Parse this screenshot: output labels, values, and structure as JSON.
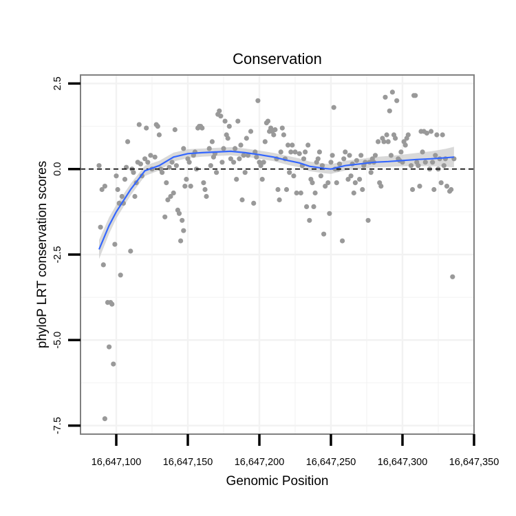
{
  "chart_data": {
    "type": "scatter",
    "title": "Conservation",
    "xlabel": "Genomic Position",
    "ylabel": "phyloP LRT conservation scores",
    "xlim": [
      16647075,
      16647350
    ],
    "ylim": [
      -7.75,
      2.75
    ],
    "x_ticks": [
      16647100,
      16647150,
      16647200,
      16647250,
      16647300,
      16647350
    ],
    "x_tick_labels": [
      "16,647,100",
      "16,647,150",
      "16,647,200",
      "16,647,250",
      "16,647,300",
      "16,647,350"
    ],
    "y_ticks": [
      2.5,
      0.0,
      -2.5,
      -5.0,
      -7.5
    ],
    "y_tick_labels": [
      "2.5",
      "0.0",
      "-2.5",
      "-5.0",
      "-7.5"
    ],
    "reference_line": {
      "y": 0.0,
      "style": "dashed"
    },
    "grid": true,
    "colors": {
      "points": "#999999",
      "smooth_line": "#3366ff",
      "ribbon": "#cccccc",
      "grid": "#f2f2f2",
      "frame": "#808080"
    },
    "series": [
      {
        "name": "points",
        "points": [
          [
            16647088,
            0.1
          ],
          [
            16647089,
            -1.7
          ],
          [
            16647090,
            -0.6
          ],
          [
            16647091,
            -2.8
          ],
          [
            16647092,
            -0.5
          ],
          [
            16647092,
            -7.3
          ],
          [
            16647094,
            -3.9
          ],
          [
            16647095,
            -5.2
          ],
          [
            16647096,
            -3.9
          ],
          [
            16647097,
            -3.95
          ],
          [
            16647098,
            -5.7
          ],
          [
            16647099,
            -2.2
          ],
          [
            16647100,
            -0.2
          ],
          [
            16647101,
            -0.6
          ],
          [
            16647102,
            -1.0
          ],
          [
            16647103,
            -3.1
          ],
          [
            16647104,
            -0.8
          ],
          [
            16647105,
            -1.0
          ],
          [
            16647106,
            -0.3
          ],
          [
            16647107,
            0.05
          ],
          [
            16647108,
            0.8
          ],
          [
            16647110,
            -2.4
          ],
          [
            16647111,
            0.0
          ],
          [
            16647112,
            -0.1
          ],
          [
            16647113,
            -0.8
          ],
          [
            16647114,
            -0.4
          ],
          [
            16647115,
            0.2
          ],
          [
            16647116,
            1.3
          ],
          [
            16647117,
            0.15
          ],
          [
            16647118,
            -0.2
          ],
          [
            16647120,
            0.3
          ],
          [
            16647121,
            1.2
          ],
          [
            16647122,
            0.2
          ],
          [
            16647124,
            0.4
          ],
          [
            16647125,
            0.0
          ],
          [
            16647127,
            0.35
          ],
          [
            16647128,
            1.3
          ],
          [
            16647129,
            1.25
          ],
          [
            16647130,
            1.0
          ],
          [
            16647131,
            0.0
          ],
          [
            16647132,
            -0.1
          ],
          [
            16647134,
            -1.4
          ],
          [
            16647135,
            -0.4
          ],
          [
            16647136,
            -0.9
          ],
          [
            16647137,
            0.05
          ],
          [
            16647138,
            -0.8
          ],
          [
            16647139,
            0.2
          ],
          [
            16647140,
            -0.7
          ],
          [
            16647141,
            1.15
          ],
          [
            16647142,
            0.1
          ],
          [
            16647143,
            -1.2
          ],
          [
            16647144,
            -1.3
          ],
          [
            16647145,
            -2.1
          ],
          [
            16647146,
            -1.5
          ],
          [
            16647147,
            0.6
          ],
          [
            16647147,
            -1.8
          ],
          [
            16647148,
            -0.5
          ],
          [
            16647149,
            -0.3
          ],
          [
            16647150,
            0.3
          ],
          [
            16647151,
            0.2
          ],
          [
            16647152,
            -0.5
          ],
          [
            16647154,
            0.4
          ],
          [
            16647155,
            0.5
          ],
          [
            16647156,
            0.0
          ],
          [
            16647157,
            1.2
          ],
          [
            16647158,
            1.25
          ],
          [
            16647159,
            1.25
          ],
          [
            16647160,
            1.2
          ],
          [
            16647161,
            -0.4
          ],
          [
            16647162,
            -0.6
          ],
          [
            16647163,
            -0.8
          ],
          [
            16647165,
            0.6
          ],
          [
            16647166,
            0.1
          ],
          [
            16647167,
            0.8
          ],
          [
            16647168,
            0.35
          ],
          [
            16647169,
            0.45
          ],
          [
            16647170,
            -0.1
          ],
          [
            16647171,
            1.6
          ],
          [
            16647172,
            1.7
          ],
          [
            16647173,
            1.55
          ],
          [
            16647174,
            0.2
          ],
          [
            16647175,
            0.6
          ],
          [
            16647176,
            1.4
          ],
          [
            16647177,
            1.0
          ],
          [
            16647178,
            0.9
          ],
          [
            16647179,
            1.25
          ],
          [
            16647180,
            0.3
          ],
          [
            16647182,
            0.2
          ],
          [
            16647183,
            0.6
          ],
          [
            16647184,
            -0.3
          ],
          [
            16647185,
            1.4
          ],
          [
            16647186,
            0.3
          ],
          [
            16647187,
            0.7
          ],
          [
            16647188,
            -0.9
          ],
          [
            16647189,
            0.4
          ],
          [
            16647190,
            -0.1
          ],
          [
            16647191,
            0.9
          ],
          [
            16647192,
            0.4
          ],
          [
            16647194,
            1.1
          ],
          [
            16647196,
            -1.0
          ],
          [
            16647197,
            0.5
          ],
          [
            16647198,
            0.35
          ],
          [
            16647199,
            2.0
          ],
          [
            16647200,
            0.2
          ],
          [
            16647201,
            0.1
          ],
          [
            16647202,
            -0.3
          ],
          [
            16647203,
            0.2
          ],
          [
            16647204,
            0.8
          ],
          [
            16647205,
            1.35
          ],
          [
            16647206,
            1.4
          ],
          [
            16647207,
            1.1
          ],
          [
            16647208,
            1.2
          ],
          [
            16647209,
            1.1
          ],
          [
            16647210,
            1.0
          ],
          [
            16647211,
            1.15
          ],
          [
            16647212,
            0.3
          ],
          [
            16647213,
            -0.6
          ],
          [
            16647214,
            -0.9
          ],
          [
            16647215,
            0.5
          ],
          [
            16647216,
            1.2
          ],
          [
            16647217,
            1.0
          ],
          [
            16647218,
            0.3
          ],
          [
            16647219,
            -0.6
          ],
          [
            16647220,
            0.7
          ],
          [
            16647221,
            -0.1
          ],
          [
            16647222,
            0.5
          ],
          [
            16647223,
            0.7
          ],
          [
            16647224,
            -0.2
          ],
          [
            16647225,
            0.5
          ],
          [
            16647226,
            -0.7
          ],
          [
            16647228,
            0.45
          ],
          [
            16647229,
            -0.7
          ],
          [
            16647230,
            0.1
          ],
          [
            16647231,
            0.3
          ],
          [
            16647232,
            0.5
          ],
          [
            16647233,
            -1.1
          ],
          [
            16647234,
            0.7
          ],
          [
            16647235,
            -1.5
          ],
          [
            16647236,
            -0.3
          ],
          [
            16647237,
            -0.4
          ],
          [
            16647238,
            -1.1
          ],
          [
            16647239,
            -0.7
          ],
          [
            16647240,
            0.2
          ],
          [
            16647241,
            0.3
          ],
          [
            16647242,
            0.5
          ],
          [
            16647243,
            -0.2
          ],
          [
            16647244,
            0.1
          ],
          [
            16647245,
            -1.9
          ],
          [
            16647246,
            -0.5
          ],
          [
            16647248,
            -0.4
          ],
          [
            16647249,
            -1.3
          ],
          [
            16647250,
            0.2
          ],
          [
            16647251,
            0.4
          ],
          [
            16647252,
            1.8
          ],
          [
            16647253,
            0.0
          ],
          [
            16647254,
            -0.4
          ],
          [
            16647255,
            0.0
          ],
          [
            16647256,
            0.15
          ],
          [
            16647258,
            -2.1
          ],
          [
            16647259,
            0.3
          ],
          [
            16647260,
            0.5
          ],
          [
            16647262,
            -0.3
          ],
          [
            16647263,
            0.4
          ],
          [
            16647264,
            -0.2
          ],
          [
            16647265,
            0.15
          ],
          [
            16647266,
            -0.7
          ],
          [
            16647267,
            -0.4
          ],
          [
            16647268,
            0.25
          ],
          [
            16647270,
            -0.3
          ],
          [
            16647271,
            0.4
          ],
          [
            16647272,
            -0.6
          ],
          [
            16647273,
            0.1
          ],
          [
            16647274,
            0.2
          ],
          [
            16647276,
            -1.5
          ],
          [
            16647277,
            0.2
          ],
          [
            16647278,
            -0.1
          ],
          [
            16647279,
            0.3
          ],
          [
            16647280,
            0.2
          ],
          [
            16647281,
            0.4
          ],
          [
            16647283,
            0.8
          ],
          [
            16647284,
            -0.4
          ],
          [
            16647285,
            -0.5
          ],
          [
            16647286,
            0.9
          ],
          [
            16647287,
            0.8
          ],
          [
            16647288,
            2.1
          ],
          [
            16647289,
            1.0
          ],
          [
            16647290,
            0.8
          ],
          [
            16647291,
            1.7
          ],
          [
            16647292,
            0.4
          ],
          [
            16647293,
            2.25
          ],
          [
            16647294,
            1.0
          ],
          [
            16647295,
            0.9
          ],
          [
            16647296,
            2.0
          ],
          [
            16647297,
            0.3
          ],
          [
            16647298,
            0.25
          ],
          [
            16647299,
            0.5
          ],
          [
            16647300,
            0.2
          ],
          [
            16647301,
            0.8
          ],
          [
            16647302,
            0.7
          ],
          [
            16647303,
            0.9
          ],
          [
            16647304,
            1.0
          ],
          [
            16647306,
            0.1
          ],
          [
            16647307,
            -0.6
          ],
          [
            16647308,
            2.15
          ],
          [
            16647309,
            2.15
          ],
          [
            16647310,
            0.2
          ],
          [
            16647311,
            0.1
          ],
          [
            16647312,
            -0.5
          ],
          [
            16647313,
            1.1
          ],
          [
            16647314,
            0.5
          ],
          [
            16647315,
            1.1
          ],
          [
            16647316,
            0.2
          ],
          [
            16647317,
            1.05
          ],
          [
            16647319,
            0.0
          ],
          [
            16647320,
            1.1
          ],
          [
            16647321,
            0.2
          ],
          [
            16647322,
            -0.6
          ],
          [
            16647323,
            0.4
          ],
          [
            16647324,
            1.0
          ],
          [
            16647325,
            0.0
          ],
          [
            16647326,
            0.3
          ],
          [
            16647327,
            -0.4
          ],
          [
            16647328,
            1.0
          ],
          [
            16647329,
            0.1
          ],
          [
            16647330,
            0.3
          ],
          [
            16647331,
            -0.5
          ],
          [
            16647333,
            -0.65
          ],
          [
            16647334,
            -0.6
          ],
          [
            16647335,
            -3.15
          ],
          [
            16647336,
            0.3
          ]
        ]
      },
      {
        "name": "loess smooth",
        "x": [
          16647088,
          16647095,
          16647100,
          16647110,
          16647120,
          16647130,
          16647140,
          16647150,
          16647160,
          16647170,
          16647180,
          16647190,
          16647200,
          16647210,
          16647220,
          16647228,
          16647235,
          16647240,
          16647245,
          16647250,
          16647255,
          16647260,
          16647270,
          16647280,
          16647290,
          16647300,
          16647310,
          16647320,
          16647330,
          16647336
        ],
        "y": [
          -2.35,
          -1.65,
          -1.25,
          -0.6,
          -0.05,
          0.1,
          0.35,
          0.45,
          0.48,
          0.5,
          0.52,
          0.48,
          0.42,
          0.35,
          0.25,
          0.18,
          0.08,
          0.05,
          0.02,
          0.0,
          0.05,
          0.1,
          0.15,
          0.2,
          0.22,
          0.25,
          0.28,
          0.3,
          0.33,
          0.35
        ],
        "se": [
          0.28,
          0.24,
          0.2,
          0.17,
          0.15,
          0.14,
          0.13,
          0.13,
          0.12,
          0.12,
          0.12,
          0.12,
          0.12,
          0.12,
          0.13,
          0.13,
          0.14,
          0.14,
          0.14,
          0.14,
          0.14,
          0.14,
          0.14,
          0.15,
          0.16,
          0.17,
          0.19,
          0.22,
          0.26,
          0.3
        ]
      }
    ]
  }
}
